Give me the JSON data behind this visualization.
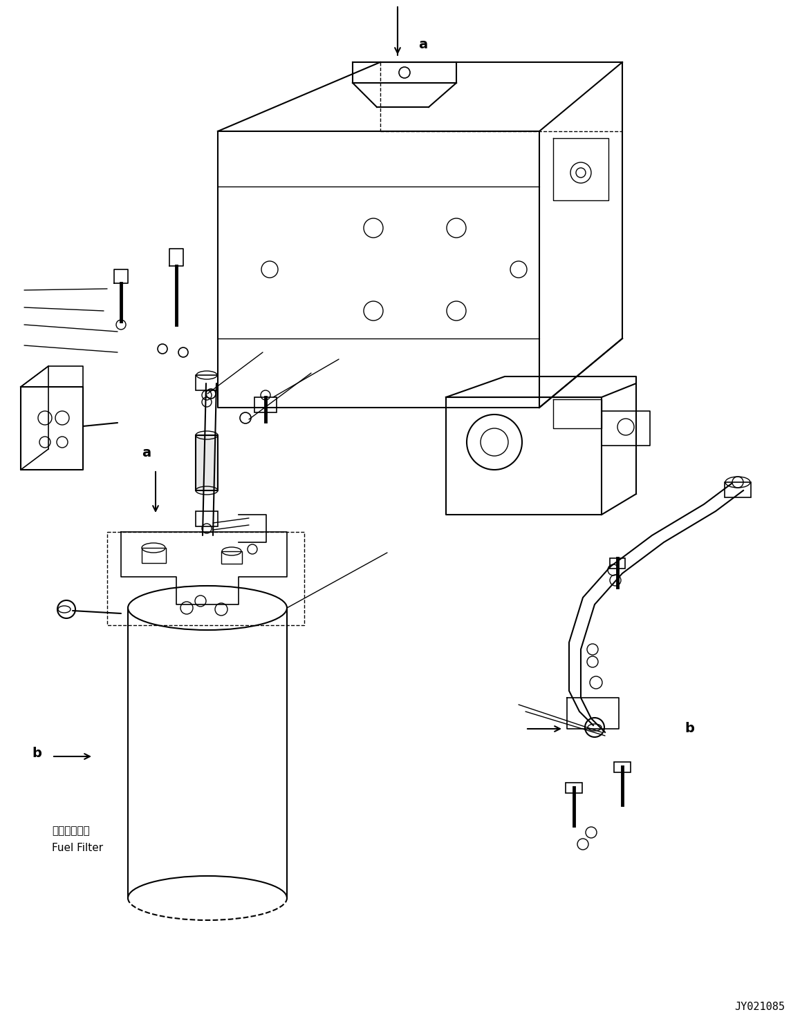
{
  "bg_color": "#ffffff",
  "line_color": "#000000",
  "fig_width": 11.57,
  "fig_height": 14.91,
  "dpi": 100,
  "part_number": "JY021085",
  "fuel_filter_jp": "燃料フィルタ",
  "fuel_filter_en": "Fuel Filter"
}
